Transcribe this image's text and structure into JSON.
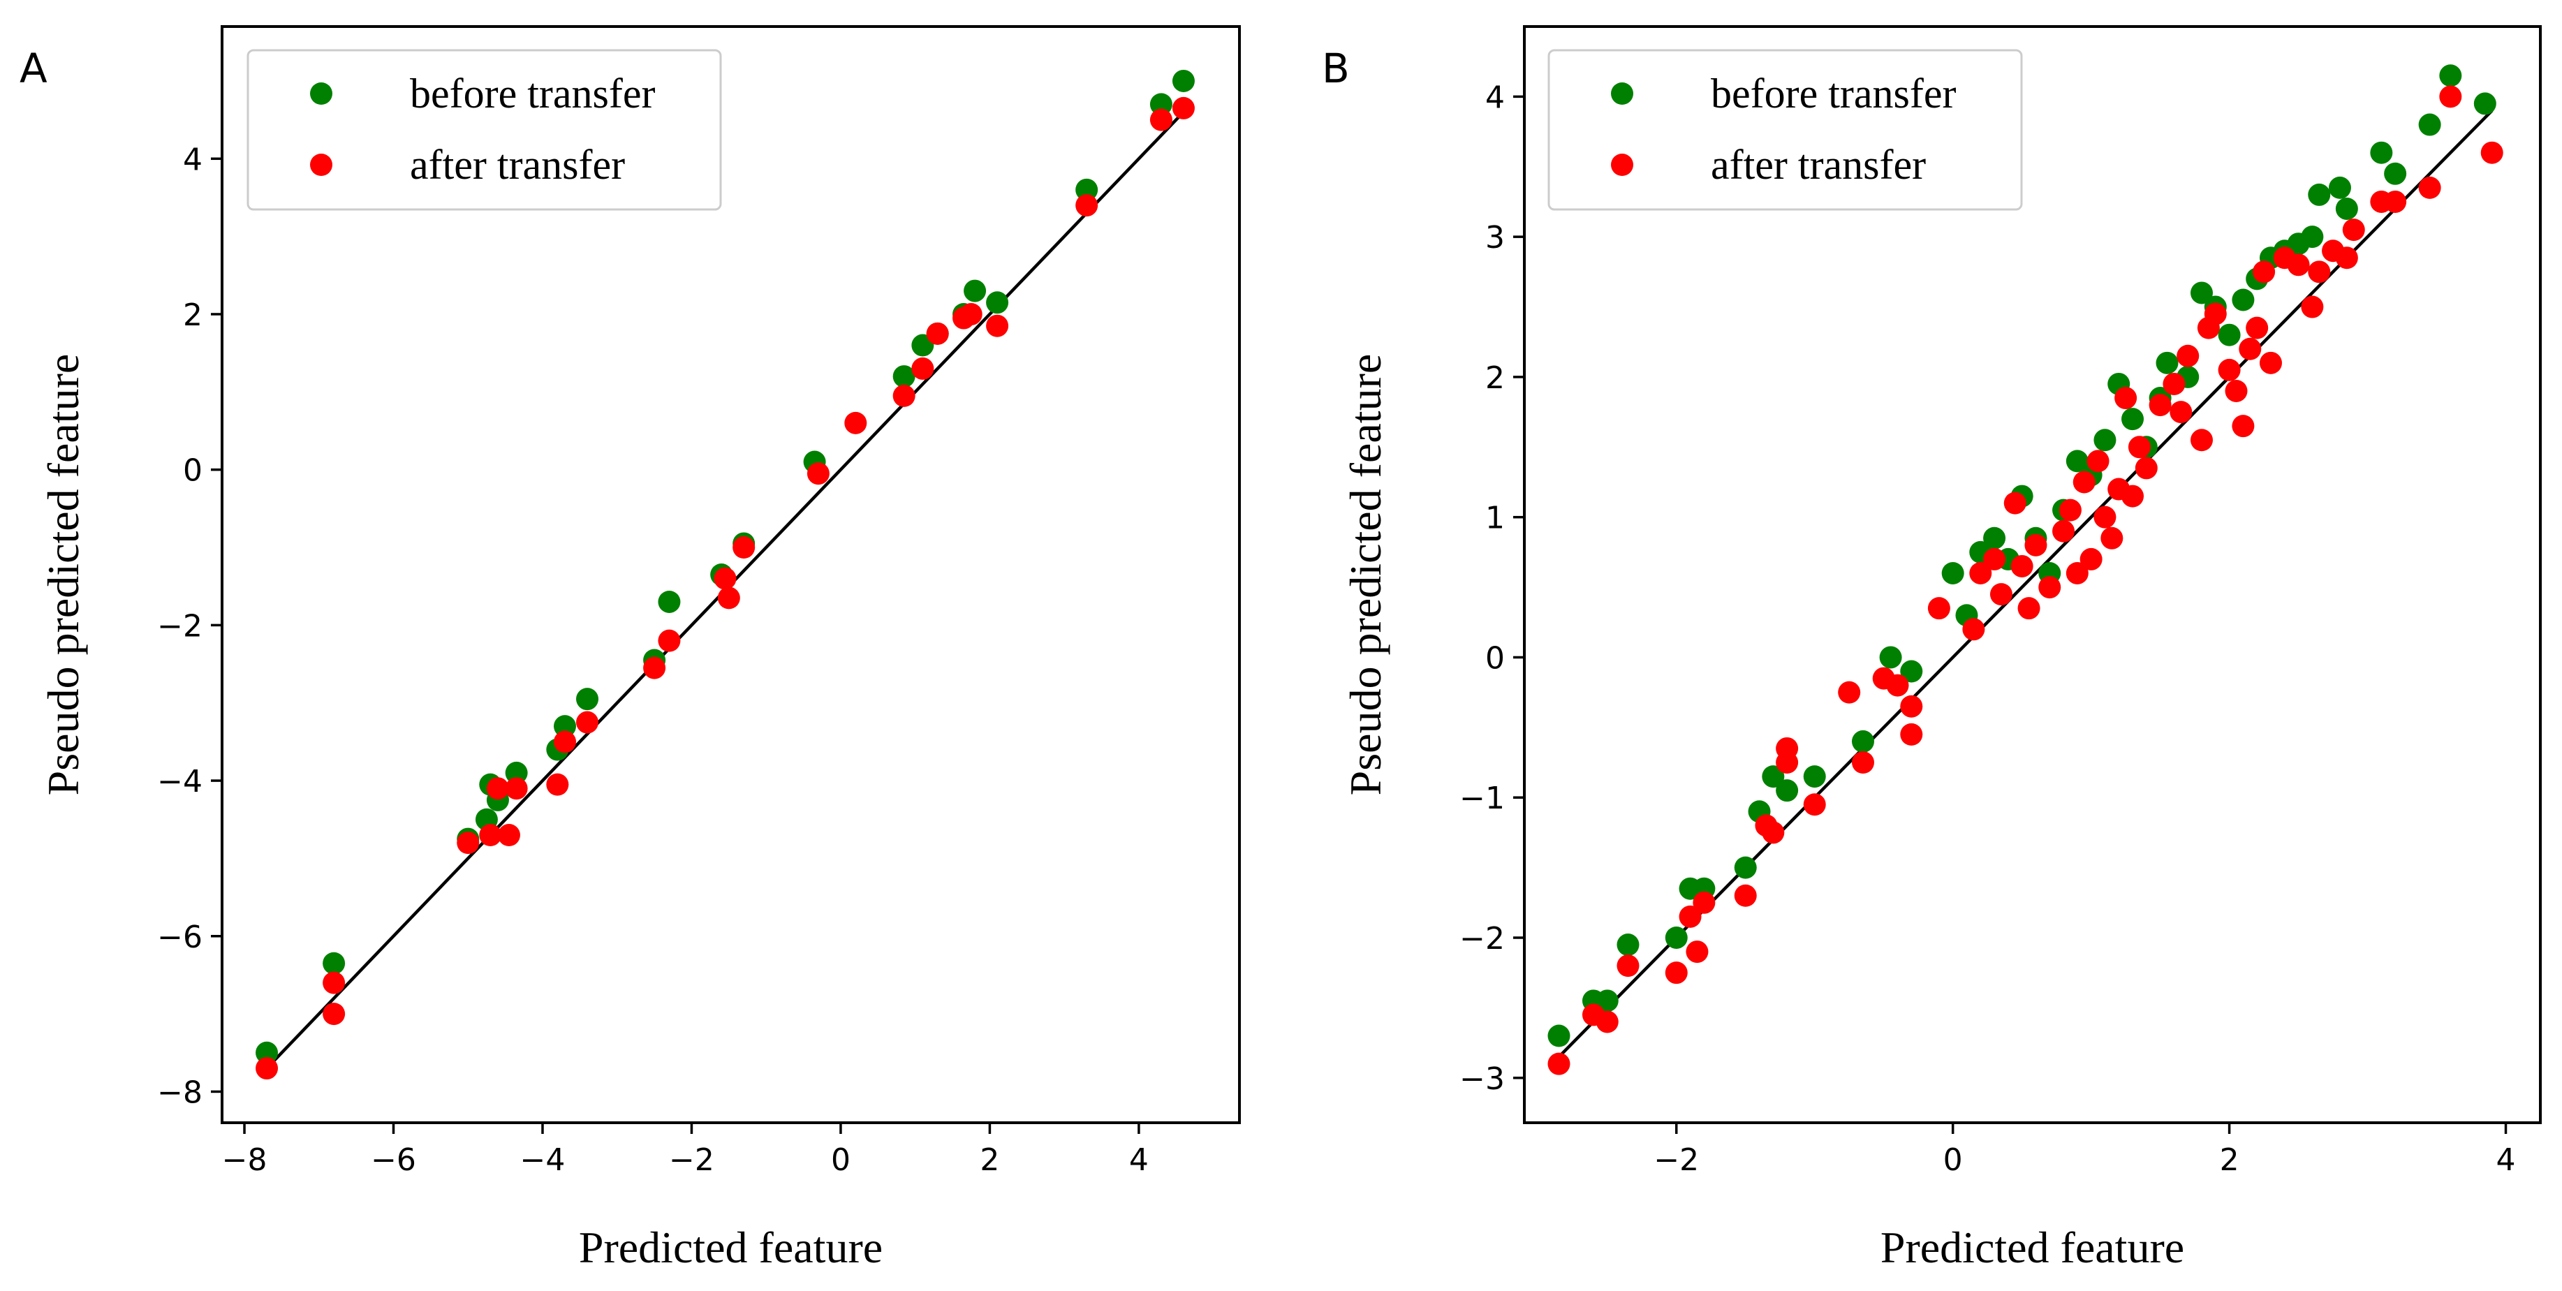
{
  "colors": {
    "before": "#008000",
    "after": "#ff0000",
    "line": "#000000"
  },
  "chart_data": [
    {
      "panel_label": "A",
      "type": "scatter",
      "xlabel": "Predicted feature",
      "ylabel": "Pseudo predicted feature",
      "xlim": [
        -8.3,
        5.35
      ],
      "ylim": [
        -8.4,
        5.7
      ],
      "xticks": [
        -8,
        -6,
        -4,
        -2,
        0,
        2,
        4
      ],
      "yticks": [
        -8,
        -6,
        -4,
        -2,
        0,
        2,
        4
      ],
      "legend_position": "top-left",
      "reference_line": {
        "x": [
          -7.7,
          4.6
        ],
        "y": [
          -7.7,
          4.6
        ]
      },
      "series": [
        {
          "name": "before transfer",
          "color": "#008000",
          "points": [
            [
              -7.7,
              -7.5
            ],
            [
              -6.8,
              -6.35
            ],
            [
              -5.0,
              -4.75
            ],
            [
              -4.75,
              -4.5
            ],
            [
              -4.7,
              -4.05
            ],
            [
              -4.6,
              -4.25
            ],
            [
              -4.35,
              -3.9
            ],
            [
              -3.8,
              -3.6
            ],
            [
              -3.7,
              -3.3
            ],
            [
              -3.4,
              -2.95
            ],
            [
              -2.5,
              -2.45
            ],
            [
              -2.3,
              -1.7
            ],
            [
              -1.6,
              -1.35
            ],
            [
              -1.3,
              -0.95
            ],
            [
              -0.35,
              0.1
            ],
            [
              0.85,
              1.2
            ],
            [
              1.1,
              1.6
            ],
            [
              1.3,
              1.75
            ],
            [
              1.65,
              2.0
            ],
            [
              1.8,
              2.3
            ],
            [
              2.1,
              2.15
            ],
            [
              3.3,
              3.6
            ],
            [
              4.3,
              4.7
            ],
            [
              4.6,
              5.0
            ]
          ]
        },
        {
          "name": "after transfer",
          "color": "#ff0000",
          "points": [
            [
              -7.7,
              -7.7
            ],
            [
              -6.8,
              -7.0
            ],
            [
              -6.8,
              -6.6
            ],
            [
              -5.0,
              -4.8
            ],
            [
              -4.7,
              -4.7
            ],
            [
              -4.6,
              -4.1
            ],
            [
              -4.45,
              -4.7
            ],
            [
              -4.35,
              -4.1
            ],
            [
              -3.8,
              -4.05
            ],
            [
              -3.7,
              -3.5
            ],
            [
              -3.4,
              -3.25
            ],
            [
              -2.5,
              -2.55
            ],
            [
              -2.3,
              -2.2
            ],
            [
              -1.55,
              -1.4
            ],
            [
              -1.5,
              -1.65
            ],
            [
              -1.3,
              -1.0
            ],
            [
              -0.3,
              -0.05
            ],
            [
              0.2,
              0.6
            ],
            [
              0.85,
              0.95
            ],
            [
              1.1,
              1.3
            ],
            [
              1.3,
              1.75
            ],
            [
              1.65,
              1.95
            ],
            [
              1.75,
              2.0
            ],
            [
              2.1,
              1.85
            ],
            [
              3.3,
              3.4
            ],
            [
              4.3,
              4.5
            ],
            [
              4.6,
              4.65
            ]
          ]
        }
      ]
    },
    {
      "panel_label": "B",
      "type": "scatter",
      "xlabel": "Predicted feature",
      "ylabel": "Pseudo predicted feature",
      "xlim": [
        -3.1,
        4.25
      ],
      "ylim": [
        -3.32,
        4.5
      ],
      "xticks": [
        -2,
        0,
        2,
        4
      ],
      "yticks": [
        -3,
        -2,
        -1,
        0,
        1,
        2,
        3,
        4
      ],
      "legend_position": "top-left",
      "reference_line": {
        "x": [
          -2.9,
          3.9
        ],
        "y": [
          -2.9,
          3.9
        ]
      },
      "series": [
        {
          "name": "before transfer",
          "color": "#008000",
          "points": [
            [
              -2.85,
              -2.7
            ],
            [
              -2.6,
              -2.45
            ],
            [
              -2.5,
              -2.45
            ],
            [
              -2.35,
              -2.05
            ],
            [
              -2.0,
              -2.0
            ],
            [
              -1.9,
              -1.65
            ],
            [
              -1.8,
              -1.65
            ],
            [
              -1.5,
              -1.5
            ],
            [
              -1.4,
              -1.1
            ],
            [
              -1.3,
              -0.85
            ],
            [
              -1.2,
              -0.95
            ],
            [
              -1.0,
              -0.85
            ],
            [
              -0.65,
              -0.6
            ],
            [
              -0.45,
              0.0
            ],
            [
              -0.3,
              -0.1
            ],
            [
              0.0,
              0.6
            ],
            [
              0.1,
              0.3
            ],
            [
              0.2,
              0.75
            ],
            [
              0.3,
              0.85
            ],
            [
              0.4,
              0.7
            ],
            [
              0.5,
              1.15
            ],
            [
              0.6,
              0.85
            ],
            [
              0.7,
              0.6
            ],
            [
              0.8,
              1.05
            ],
            [
              0.9,
              1.4
            ],
            [
              1.0,
              1.3
            ],
            [
              1.1,
              1.55
            ],
            [
              1.2,
              1.95
            ],
            [
              1.3,
              1.7
            ],
            [
              1.4,
              1.5
            ],
            [
              1.5,
              1.85
            ],
            [
              1.55,
              2.1
            ],
            [
              1.7,
              2.0
            ],
            [
              1.8,
              2.6
            ],
            [
              1.9,
              2.5
            ],
            [
              2.0,
              2.3
            ],
            [
              2.1,
              2.55
            ],
            [
              2.2,
              2.7
            ],
            [
              2.3,
              2.85
            ],
            [
              2.4,
              2.9
            ],
            [
              2.5,
              2.95
            ],
            [
              2.6,
              3.0
            ],
            [
              2.65,
              3.3
            ],
            [
              2.8,
              3.35
            ],
            [
              2.85,
              3.2
            ],
            [
              3.1,
              3.6
            ],
            [
              3.2,
              3.45
            ],
            [
              3.45,
              3.8
            ],
            [
              3.6,
              4.15
            ],
            [
              3.85,
              3.95
            ]
          ]
        },
        {
          "name": "after transfer",
          "color": "#ff0000",
          "points": [
            [
              -2.85,
              -2.9
            ],
            [
              -2.6,
              -2.55
            ],
            [
              -2.5,
              -2.6
            ],
            [
              -2.35,
              -2.2
            ],
            [
              -2.0,
              -2.25
            ],
            [
              -1.9,
              -1.85
            ],
            [
              -1.85,
              -2.1
            ],
            [
              -1.8,
              -1.75
            ],
            [
              -1.5,
              -1.7
            ],
            [
              -1.35,
              -1.2
            ],
            [
              -1.3,
              -1.25
            ],
            [
              -1.2,
              -0.75
            ],
            [
              -1.2,
              -0.65
            ],
            [
              -1.0,
              -1.05
            ],
            [
              -0.65,
              -0.75
            ],
            [
              -0.75,
              -0.25
            ],
            [
              -0.5,
              -0.15
            ],
            [
              -0.4,
              -0.2
            ],
            [
              -0.3,
              -0.55
            ],
            [
              -0.3,
              -0.35
            ],
            [
              -0.1,
              0.35
            ],
            [
              0.15,
              0.2
            ],
            [
              0.2,
              0.6
            ],
            [
              0.3,
              0.7
            ],
            [
              0.35,
              0.45
            ],
            [
              0.45,
              1.1
            ],
            [
              0.5,
              0.65
            ],
            [
              0.55,
              0.35
            ],
            [
              0.6,
              0.8
            ],
            [
              0.7,
              0.5
            ],
            [
              0.8,
              0.9
            ],
            [
              0.85,
              1.05
            ],
            [
              0.9,
              0.6
            ],
            [
              0.95,
              1.25
            ],
            [
              1.0,
              0.7
            ],
            [
              1.05,
              1.4
            ],
            [
              1.1,
              1.0
            ],
            [
              1.15,
              0.85
            ],
            [
              1.2,
              1.2
            ],
            [
              1.25,
              1.85
            ],
            [
              1.3,
              1.15
            ],
            [
              1.35,
              1.5
            ],
            [
              1.4,
              1.35
            ],
            [
              1.5,
              1.8
            ],
            [
              1.6,
              1.95
            ],
            [
              1.65,
              1.75
            ],
            [
              1.7,
              2.15
            ],
            [
              1.8,
              1.55
            ],
            [
              1.85,
              2.35
            ],
            [
              1.9,
              2.45
            ],
            [
              2.0,
              2.05
            ],
            [
              2.05,
              1.9
            ],
            [
              2.1,
              1.65
            ],
            [
              2.15,
              2.2
            ],
            [
              2.2,
              2.35
            ],
            [
              2.25,
              2.75
            ],
            [
              2.3,
              2.1
            ],
            [
              2.4,
              2.85
            ],
            [
              2.5,
              2.8
            ],
            [
              2.6,
              2.5
            ],
            [
              2.65,
              2.75
            ],
            [
              2.75,
              2.9
            ],
            [
              2.85,
              2.85
            ],
            [
              2.9,
              3.05
            ],
            [
              3.1,
              3.25
            ],
            [
              3.2,
              3.25
            ],
            [
              3.45,
              3.35
            ],
            [
              3.6,
              4.0
            ],
            [
              3.9,
              3.6
            ]
          ]
        }
      ]
    }
  ]
}
